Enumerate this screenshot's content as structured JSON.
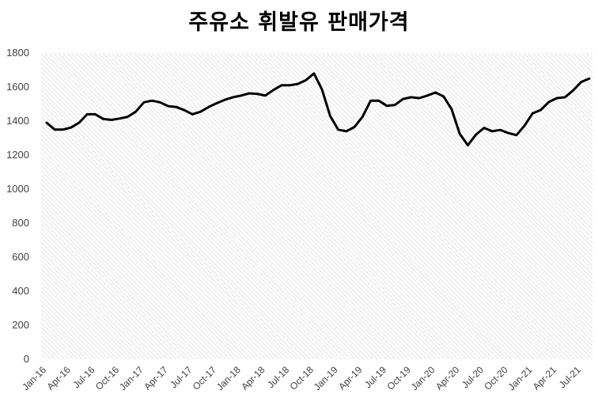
{
  "chart_data": {
    "type": "line",
    "title": "주유소 휘발유 판매가격",
    "xlabel": "",
    "ylabel": "",
    "ylim": [
      0,
      1800
    ],
    "yticks": [
      0,
      200,
      400,
      600,
      800,
      1000,
      1200,
      1400,
      1600,
      1800
    ],
    "grid": "hatched plot background",
    "legend": "none",
    "line_color": "#000000",
    "x_tick_labels": [
      "Jan-16",
      "Apr-16",
      "Jul-16",
      "Oct-16",
      "Jan-17",
      "Apr-17",
      "Jul-17",
      "Oct-17",
      "Jan-18",
      "Apr-18",
      "Jul-18",
      "Oct-18",
      "Jan-19",
      "Apr-19",
      "Jul-19",
      "Oct-19",
      "Jan-20",
      "Apr-20",
      "Jul-20",
      "Oct-20",
      "Jan-21",
      "Apr-21",
      "Jul-21"
    ],
    "x": [
      "Jan-16",
      "Feb-16",
      "Mar-16",
      "Apr-16",
      "May-16",
      "Jun-16",
      "Jul-16",
      "Aug-16",
      "Sep-16",
      "Oct-16",
      "Nov-16",
      "Dec-16",
      "Jan-17",
      "Feb-17",
      "Mar-17",
      "Apr-17",
      "May-17",
      "Jun-17",
      "Jul-17",
      "Aug-17",
      "Sep-17",
      "Oct-17",
      "Nov-17",
      "Dec-17",
      "Jan-18",
      "Feb-18",
      "Mar-18",
      "Apr-18",
      "May-18",
      "Jun-18",
      "Jul-18",
      "Aug-18",
      "Sep-18",
      "Oct-18",
      "Nov-18",
      "Dec-18",
      "Jan-19",
      "Feb-19",
      "Mar-19",
      "Apr-19",
      "May-19",
      "Jun-19",
      "Jul-19",
      "Aug-19",
      "Sep-19",
      "Oct-19",
      "Nov-19",
      "Dec-19",
      "Jan-20",
      "Feb-20",
      "Mar-20",
      "Apr-20",
      "May-20",
      "Jun-20",
      "Jul-20",
      "Aug-20",
      "Sep-20",
      "Oct-20",
      "Nov-20",
      "Dec-20",
      "Jan-21",
      "Feb-21",
      "Mar-21",
      "Apr-21",
      "May-21",
      "Jun-21",
      "Jul-21",
      "Aug-21"
    ],
    "values": [
      1390,
      1350,
      1350,
      1362,
      1390,
      1440,
      1440,
      1412,
      1407,
      1415,
      1425,
      1455,
      1510,
      1520,
      1510,
      1488,
      1483,
      1464,
      1440,
      1455,
      1483,
      1505,
      1525,
      1540,
      1550,
      1563,
      1560,
      1550,
      1583,
      1610,
      1610,
      1618,
      1640,
      1680,
      1585,
      1430,
      1350,
      1340,
      1365,
      1425,
      1520,
      1520,
      1490,
      1495,
      1530,
      1540,
      1535,
      1550,
      1568,
      1545,
      1470,
      1325,
      1258,
      1320,
      1360,
      1340,
      1348,
      1330,
      1317,
      1373,
      1445,
      1465,
      1512,
      1535,
      1540,
      1580,
      1630,
      1650
    ]
  }
}
